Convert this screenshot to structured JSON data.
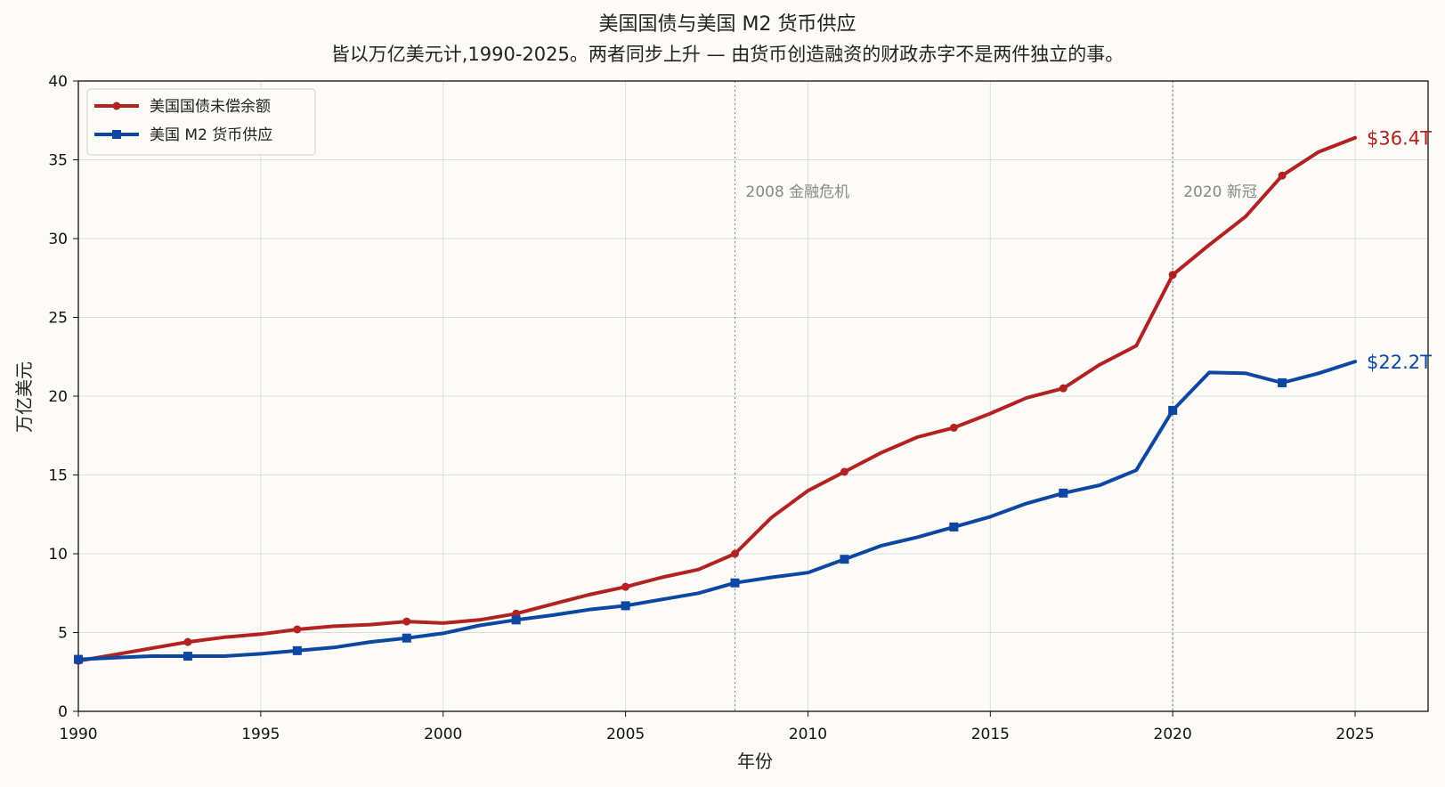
{
  "chart_data": {
    "type": "line",
    "title": "美国国债与美国 M2 货币供应",
    "subtitle": "皆以万亿美元计,1990-2025。两者同步上升 — 由货币创造融资的财政赤字不是两件独立的事。",
    "xlabel": "年份",
    "ylabel": "万亿美元",
    "xlim": [
      1990,
      2027
    ],
    "ylim": [
      0,
      40
    ],
    "x_ticks": [
      1990,
      1995,
      2000,
      2005,
      2010,
      2015,
      2020,
      2025
    ],
    "y_ticks": [
      0,
      5,
      10,
      15,
      20,
      25,
      30,
      35,
      40
    ],
    "grid": true,
    "legend_position": "top-left",
    "x": [
      1990,
      1991,
      1992,
      1993,
      1994,
      1995,
      1996,
      1997,
      1998,
      1999,
      2000,
      2001,
      2002,
      2003,
      2004,
      2005,
      2006,
      2007,
      2008,
      2009,
      2010,
      2011,
      2012,
      2013,
      2014,
      2015,
      2016,
      2017,
      2018,
      2019,
      2020,
      2021,
      2022,
      2023,
      2024,
      2025
    ],
    "series": [
      {
        "name": "美国国债未偿余额",
        "color": "#b22222",
        "marker": "circle",
        "marker_years": [
          1990,
          1993,
          1996,
          1999,
          2002,
          2005,
          2008,
          2011,
          2014,
          2017,
          2020,
          2023
        ],
        "values": [
          3.2,
          3.6,
          4.0,
          4.4,
          4.7,
          4.9,
          5.2,
          5.4,
          5.5,
          5.7,
          5.6,
          5.8,
          6.2,
          6.8,
          7.4,
          7.9,
          8.5,
          9.0,
          10.0,
          12.3,
          14.0,
          15.2,
          16.4,
          17.4,
          18.0,
          18.9,
          19.9,
          20.5,
          22.0,
          23.2,
          27.7,
          29.6,
          31.4,
          34.0,
          35.5,
          36.4
        ],
        "end_label": "$36.4T"
      },
      {
        "name": "美国 M2 货币供应",
        "color": "#0d47a1",
        "marker": "square",
        "marker_years": [
          1990,
          1993,
          1996,
          1999,
          2002,
          2005,
          2008,
          2011,
          2014,
          2017,
          2020,
          2023
        ],
        "values": [
          3.3,
          3.4,
          3.5,
          3.5,
          3.5,
          3.65,
          3.85,
          4.05,
          4.4,
          4.65,
          4.95,
          5.45,
          5.8,
          6.1,
          6.45,
          6.7,
          7.1,
          7.5,
          8.15,
          8.5,
          8.8,
          9.65,
          10.5,
          11.05,
          11.7,
          12.35,
          13.2,
          13.85,
          14.35,
          15.3,
          19.1,
          21.5,
          21.45,
          20.85,
          21.45,
          22.2
        ],
        "end_label": "$22.2T"
      }
    ],
    "annotations": [
      {
        "x": 2008,
        "text": "2008 金融危机"
      },
      {
        "x": 2020,
        "text": "2020 新冠"
      }
    ]
  }
}
